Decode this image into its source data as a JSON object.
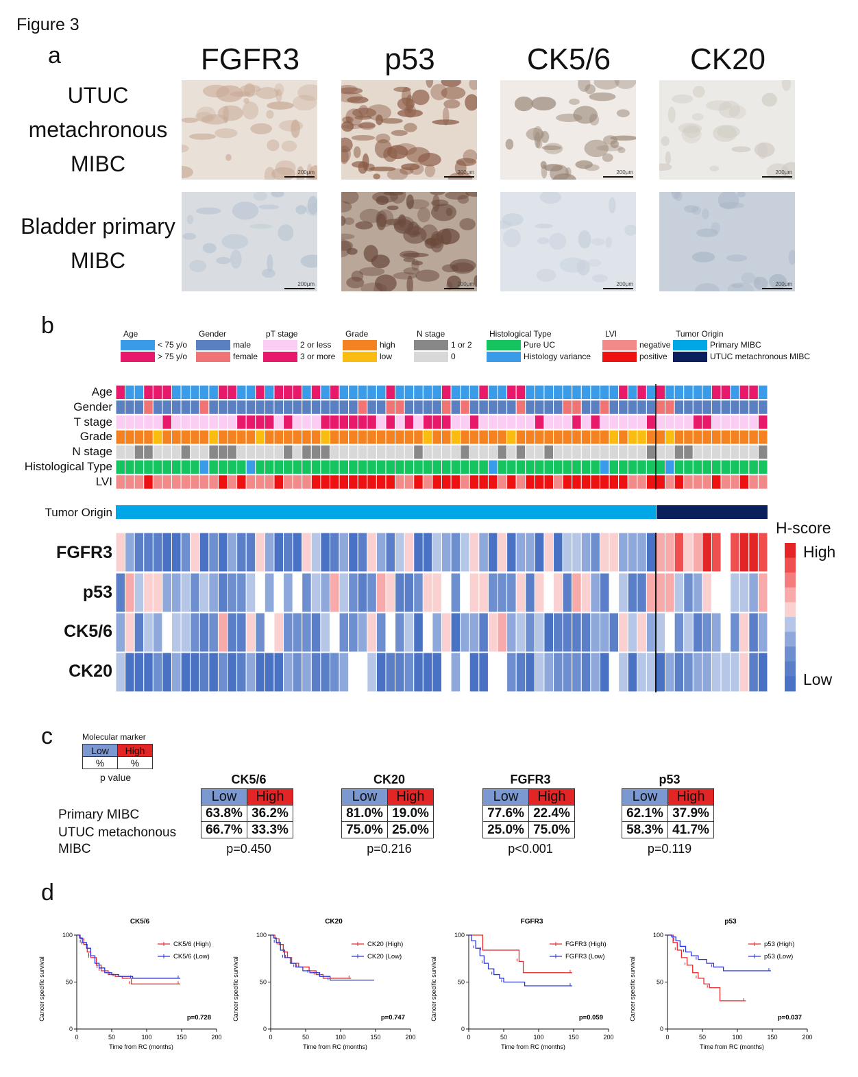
{
  "figure_title": "Figure 3",
  "panels": {
    "a": "a",
    "b": "b",
    "c": "c",
    "d": "d"
  },
  "panel_a": {
    "markers": [
      "FGFR3",
      "p53",
      "CK5/6",
      "CK20"
    ],
    "row1_lines": [
      "UTUC",
      "metachronous",
      "MIBC"
    ],
    "row2_lines": [
      "Bladder primary",
      "MIBC"
    ],
    "scale_label": "200μm"
  },
  "panel_b": {
    "legend": [
      {
        "title": "Age",
        "items": [
          {
            "label": "< 75 y/o",
            "color": "#3a9be8"
          },
          {
            "label": "> 75 y/o",
            "color": "#e8186a"
          }
        ]
      },
      {
        "title": "Gender",
        "items": [
          {
            "label": "male",
            "color": "#5b80c2"
          },
          {
            "label": "female",
            "color": "#f07474"
          }
        ]
      },
      {
        "title": "pT stage",
        "items": [
          {
            "label": "2 or less",
            "color": "#fbcdf4"
          },
          {
            "label": "3 or more",
            "color": "#e8186a"
          }
        ]
      },
      {
        "title": "Grade",
        "items": [
          {
            "label": "high",
            "color": "#f58220"
          },
          {
            "label": "low",
            "color": "#fbbc12"
          }
        ]
      },
      {
        "title": "N stage",
        "items": [
          {
            "label": "1 or 2",
            "color": "#888888"
          },
          {
            "label": "0",
            "color": "#d8d8d8"
          }
        ]
      },
      {
        "title": "Histological Type",
        "items": [
          {
            "label": "Pure UC",
            "color": "#15c35f"
          },
          {
            "label": "Histology variance",
            "color": "#3a9be8"
          }
        ]
      },
      {
        "title": "LVI",
        "items": [
          {
            "label": "negative",
            "color": "#f28a8a"
          },
          {
            "label": "positive",
            "color": "#ee1111"
          }
        ]
      },
      {
        "title": "Tumor Origin",
        "items": [
          {
            "label": "Primary MIBC",
            "color": "#00a7e6"
          },
          {
            "label": "UTUC metachronous MIBC",
            "color": "#0b1f5c"
          }
        ]
      }
    ],
    "track_labels": [
      "Age",
      "Gender",
      "T stage",
      "Grade",
      "N stage",
      "Histological Type",
      "LVI"
    ],
    "tumor_origin_label": "Tumor Origin",
    "marker_labels": [
      "FGFR3",
      "p53",
      "CK5/6",
      "CK20"
    ],
    "hscore_title": "H-score",
    "hscore_high": "High",
    "hscore_low": "Low",
    "primary_count": 58,
    "utuc_count": 12
  },
  "panel_c": {
    "key_title": "Molecular marker",
    "key_low": "Low",
    "key_high": "High",
    "key_pct": "%",
    "key_pvalue": "p value",
    "row_labels": [
      "Primary MIBC",
      "UTUC metachonous",
      "MIBC"
    ],
    "low_label": "Low",
    "high_label": "High",
    "tables": [
      {
        "name": "CK5/6",
        "primary": [
          "63.8%",
          "36.2%"
        ],
        "utuc": [
          "66.7%",
          "33.3%"
        ],
        "p": "p=0.450"
      },
      {
        "name": "CK20",
        "primary": [
          "81.0%",
          "19.0%"
        ],
        "utuc": [
          "75.0%",
          "25.0%"
        ],
        "p": "p=0.216"
      },
      {
        "name": "FGFR3",
        "primary": [
          "77.6%",
          "22.4%"
        ],
        "utuc": [
          "25.0%",
          "75.0%"
        ],
        "p": "p<0.001"
      },
      {
        "name": "p53",
        "primary": [
          "62.1%",
          "37.9%"
        ],
        "utuc": [
          "58.3%",
          "41.7%"
        ],
        "p": "p=0.119"
      }
    ]
  },
  "chart_data": [
    {
      "type": "line",
      "title": "CK5/6",
      "xlabel": "Time from RC (months)",
      "ylabel": "Cancer specific survival",
      "xlim": [
        0,
        200
      ],
      "ylim": [
        0,
        100
      ],
      "xticks": [
        0,
        50,
        100,
        150,
        200
      ],
      "yticks": [
        0,
        50,
        100
      ],
      "p": "p=0.728",
      "series": [
        {
          "name": "CK5/6 (High)",
          "color": "#e8282a",
          "x": [
            0,
            5,
            10,
            15,
            20,
            28,
            35,
            45,
            55,
            65,
            78,
            100,
            148
          ],
          "y": [
            100,
            96,
            90,
            82,
            76,
            68,
            62,
            58,
            56,
            54,
            48,
            48,
            48
          ]
        },
        {
          "name": "CK5/6 (Low)",
          "color": "#2b35d8",
          "x": [
            0,
            4,
            8,
            14,
            20,
            26,
            32,
            40,
            50,
            60,
            80,
            100,
            148
          ],
          "y": [
            100,
            97,
            92,
            86,
            78,
            70,
            65,
            60,
            58,
            56,
            54,
            54,
            54
          ]
        }
      ]
    },
    {
      "type": "line",
      "title": "CK20",
      "xlabel": "Time from RC (months)",
      "ylabel": "Cancer specific survival",
      "xlim": [
        0,
        200
      ],
      "ylim": [
        0,
        100
      ],
      "xticks": [
        0,
        50,
        100,
        150,
        200
      ],
      "yticks": [
        0,
        50,
        100
      ],
      "p": "p=0.747",
      "series": [
        {
          "name": "CK20 (High)",
          "color": "#e8282a",
          "x": [
            0,
            6,
            12,
            18,
            24,
            30,
            40,
            55,
            65,
            75,
            115
          ],
          "y": [
            100,
            96,
            90,
            82,
            76,
            70,
            66,
            62,
            58,
            54,
            54
          ]
        },
        {
          "name": "CK20 (Low)",
          "color": "#2b35d8",
          "x": [
            0,
            4,
            8,
            14,
            20,
            28,
            36,
            46,
            56,
            70,
            85,
            148
          ],
          "y": [
            100,
            97,
            92,
            84,
            76,
            70,
            66,
            62,
            60,
            56,
            52,
            52
          ]
        }
      ]
    },
    {
      "type": "line",
      "title": "FGFR3",
      "xlabel": "Time from RC (months)",
      "ylabel": "Cancer specific survival",
      "xlim": [
        0,
        200
      ],
      "ylim": [
        0,
        100
      ],
      "xticks": [
        0,
        50,
        100,
        150,
        200
      ],
      "yticks": [
        0,
        50,
        100
      ],
      "p": "p=0.059",
      "series": [
        {
          "name": "FGFR3 (High)",
          "color": "#e8282a",
          "x": [
            0,
            18,
            20,
            65,
            72,
            78,
            148
          ],
          "y": [
            100,
            100,
            84,
            84,
            72,
            60,
            60
          ]
        },
        {
          "name": "FGFR3 (Low)",
          "color": "#2b35d8",
          "x": [
            0,
            4,
            10,
            16,
            22,
            28,
            36,
            44,
            50,
            80,
            148
          ],
          "y": [
            100,
            94,
            86,
            78,
            70,
            64,
            58,
            54,
            50,
            46,
            46
          ]
        }
      ]
    },
    {
      "type": "line",
      "title": "p53",
      "xlabel": "Time from RC (months)",
      "ylabel": "Cancer specific survival",
      "xlim": [
        0,
        200
      ],
      "ylim": [
        0,
        100
      ],
      "xticks": [
        0,
        50,
        100,
        150,
        200
      ],
      "yticks": [
        0,
        50,
        100
      ],
      "p": "p=0.037",
      "series": [
        {
          "name": "p53 (High)",
          "color": "#e8282a",
          "x": [
            0,
            8,
            14,
            20,
            28,
            36,
            44,
            52,
            60,
            75,
            112
          ],
          "y": [
            100,
            92,
            84,
            76,
            68,
            60,
            54,
            48,
            44,
            30,
            30
          ]
        },
        {
          "name": "p53 (Low)",
          "color": "#2b35d8",
          "x": [
            0,
            6,
            12,
            18,
            26,
            34,
            44,
            56,
            66,
            80,
            148
          ],
          "y": [
            100,
            98,
            94,
            88,
            82,
            78,
            74,
            70,
            66,
            62,
            62
          ]
        }
      ]
    }
  ]
}
